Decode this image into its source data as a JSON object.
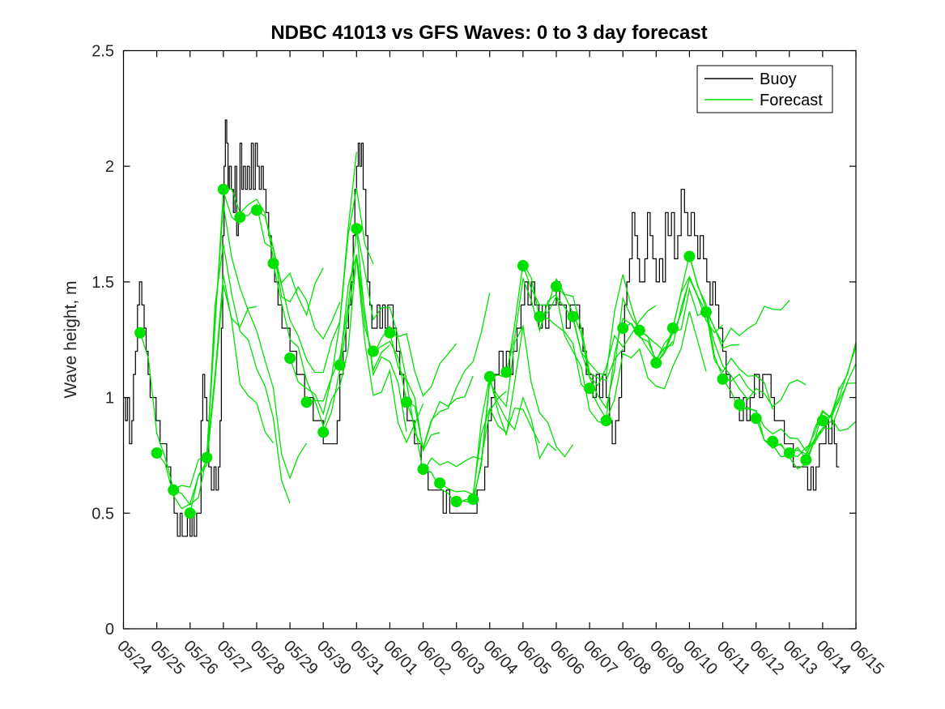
{
  "chart_data": {
    "type": "line",
    "title": "NDBC 41013 vs GFS Waves: 0 to 3 day forecast",
    "xlabel": "",
    "ylabel": "Wave height, m",
    "ylim": [
      0,
      2.5
    ],
    "x_range_days": [
      0,
      22
    ],
    "grid": false,
    "x_tick_labels": [
      "05/24",
      "05/25",
      "05/26",
      "05/27",
      "05/28",
      "05/29",
      "05/30",
      "05/31",
      "06/01",
      "06/02",
      "06/03",
      "06/04",
      "06/05",
      "06/06",
      "06/07",
      "06/08",
      "06/09",
      "06/10",
      "06/11",
      "06/12",
      "06/13",
      "06/14",
      "06/15"
    ],
    "y_tick_values": [
      0,
      0.5,
      1,
      1.5,
      2,
      2.5
    ],
    "y_tick_labels": [
      "0",
      "0.5",
      "1",
      "1.5",
      "2",
      "2.5"
    ],
    "legend": {
      "position": "top-right",
      "entries": [
        {
          "label": "Buoy",
          "color": "#000000"
        },
        {
          "label": "Forecast",
          "color": "#00e100"
        }
      ]
    },
    "series": {
      "buoy": {
        "name": "Buoy",
        "color": "#000000",
        "style": "step",
        "points": [
          [
            0.0,
            1.0
          ],
          [
            0.06,
            0.9
          ],
          [
            0.12,
            1.0
          ],
          [
            0.18,
            0.8
          ],
          [
            0.25,
            0.9
          ],
          [
            0.3,
            1.1
          ],
          [
            0.36,
            1.2
          ],
          [
            0.42,
            1.4
          ],
          [
            0.48,
            1.5
          ],
          [
            0.55,
            1.4
          ],
          [
            0.62,
            1.3
          ],
          [
            0.68,
            1.2
          ],
          [
            0.74,
            1.1
          ],
          [
            0.8,
            1.0
          ],
          [
            0.9,
            1.0
          ],
          [
            0.98,
            0.9
          ],
          [
            1.1,
            0.8
          ],
          [
            1.2,
            0.8
          ],
          [
            1.3,
            0.7
          ],
          [
            1.42,
            0.6
          ],
          [
            1.52,
            0.5
          ],
          [
            1.62,
            0.4
          ],
          [
            1.7,
            0.5
          ],
          [
            1.76,
            0.4
          ],
          [
            1.85,
            0.4
          ],
          [
            1.92,
            0.5
          ],
          [
            2.0,
            0.4
          ],
          [
            2.06,
            0.5
          ],
          [
            2.12,
            0.4
          ],
          [
            2.2,
            0.5
          ],
          [
            2.28,
            0.5
          ],
          [
            2.33,
            0.9
          ],
          [
            2.38,
            1.1
          ],
          [
            2.44,
            1.0
          ],
          [
            2.5,
            0.9
          ],
          [
            2.56,
            0.7
          ],
          [
            2.64,
            0.6
          ],
          [
            2.72,
            0.7
          ],
          [
            2.78,
            0.6
          ],
          [
            2.85,
            0.7
          ],
          [
            2.9,
            0.9
          ],
          [
            2.94,
            1.3
          ],
          [
            2.98,
            1.7
          ],
          [
            3.02,
            2.0
          ],
          [
            3.06,
            2.2
          ],
          [
            3.1,
            2.1
          ],
          [
            3.14,
            1.9
          ],
          [
            3.18,
            2.0
          ],
          [
            3.24,
            1.9
          ],
          [
            3.3,
            1.8
          ],
          [
            3.35,
            2.0
          ],
          [
            3.4,
            1.7
          ],
          [
            3.45,
            1.8
          ],
          [
            3.5,
            2.1
          ],
          [
            3.55,
            1.9
          ],
          [
            3.6,
            2.0
          ],
          [
            3.66,
            1.9
          ],
          [
            3.72,
            2.0
          ],
          [
            3.78,
            1.9
          ],
          [
            3.84,
            2.1
          ],
          [
            3.9,
            1.9
          ],
          [
            3.96,
            2.1
          ],
          [
            4.02,
            2.0
          ],
          [
            4.08,
            1.9
          ],
          [
            4.14,
            2.0
          ],
          [
            4.2,
            1.9
          ],
          [
            4.28,
            1.8
          ],
          [
            4.36,
            1.7
          ],
          [
            4.44,
            1.6
          ],
          [
            4.54,
            1.5
          ],
          [
            4.64,
            1.4
          ],
          [
            4.76,
            1.3
          ],
          [
            4.88,
            1.3
          ],
          [
            5.0,
            1.2
          ],
          [
            5.1,
            1.2
          ],
          [
            5.2,
            1.1
          ],
          [
            5.32,
            1.1
          ],
          [
            5.44,
            1.0
          ],
          [
            5.58,
            1.0
          ],
          [
            5.7,
            0.9
          ],
          [
            5.85,
            0.9
          ],
          [
            6.0,
            0.8
          ],
          [
            6.12,
            0.8
          ],
          [
            6.25,
            0.8
          ],
          [
            6.35,
            0.8
          ],
          [
            6.42,
            0.9
          ],
          [
            6.5,
            1.1
          ],
          [
            6.6,
            1.2
          ],
          [
            6.68,
            1.3
          ],
          [
            6.76,
            1.4
          ],
          [
            6.84,
            1.5
          ],
          [
            6.9,
            1.7
          ],
          [
            6.95,
            1.9
          ],
          [
            7.0,
            2.0
          ],
          [
            7.05,
            2.1
          ],
          [
            7.1,
            2.0
          ],
          [
            7.15,
            2.1
          ],
          [
            7.2,
            1.9
          ],
          [
            7.28,
            1.7
          ],
          [
            7.34,
            1.5
          ],
          [
            7.4,
            1.4
          ],
          [
            7.46,
            1.3
          ],
          [
            7.55,
            1.3
          ],
          [
            7.62,
            1.4
          ],
          [
            7.7,
            1.3
          ],
          [
            7.78,
            1.4
          ],
          [
            7.86,
            1.3
          ],
          [
            7.94,
            1.4
          ],
          [
            8.02,
            1.4
          ],
          [
            8.1,
            1.3
          ],
          [
            8.2,
            1.2
          ],
          [
            8.3,
            1.1
          ],
          [
            8.42,
            1.0
          ],
          [
            8.52,
            0.9
          ],
          [
            8.64,
            0.9
          ],
          [
            8.74,
            0.8
          ],
          [
            8.84,
            0.8
          ],
          [
            8.94,
            0.7
          ],
          [
            9.05,
            0.7
          ],
          [
            9.15,
            0.6
          ],
          [
            9.28,
            0.6
          ],
          [
            9.4,
            0.6
          ],
          [
            9.5,
            0.6
          ],
          [
            9.6,
            0.5
          ],
          [
            9.7,
            0.6
          ],
          [
            9.8,
            0.5
          ],
          [
            9.95,
            0.5
          ],
          [
            10.1,
            0.5
          ],
          [
            10.3,
            0.5
          ],
          [
            10.5,
            0.5
          ],
          [
            10.62,
            0.6
          ],
          [
            10.75,
            0.6
          ],
          [
            10.85,
            0.7
          ],
          [
            10.95,
            0.9
          ],
          [
            11.05,
            1.0
          ],
          [
            11.15,
            1.1
          ],
          [
            11.28,
            1.2
          ],
          [
            11.4,
            1.1
          ],
          [
            11.5,
            1.2
          ],
          [
            11.6,
            1.1
          ],
          [
            11.7,
            1.2
          ],
          [
            11.82,
            1.3
          ],
          [
            11.94,
            1.4
          ],
          [
            12.05,
            1.5
          ],
          [
            12.15,
            1.4
          ],
          [
            12.25,
            1.5
          ],
          [
            12.35,
            1.4
          ],
          [
            12.48,
            1.3
          ],
          [
            12.58,
            1.4
          ],
          [
            12.68,
            1.3
          ],
          [
            12.78,
            1.4
          ],
          [
            12.9,
            1.4
          ],
          [
            13.0,
            1.5
          ],
          [
            13.1,
            1.4
          ],
          [
            13.2,
            1.4
          ],
          [
            13.3,
            1.3
          ],
          [
            13.42,
            1.4
          ],
          [
            13.55,
            1.4
          ],
          [
            13.7,
            1.3
          ],
          [
            13.8,
            1.2
          ],
          [
            13.9,
            1.1
          ],
          [
            14.0,
            1.1
          ],
          [
            14.1,
            1.0
          ],
          [
            14.2,
            1.1
          ],
          [
            14.3,
            1.0
          ],
          [
            14.4,
            1.1
          ],
          [
            14.5,
            1.0
          ],
          [
            14.6,
            0.9
          ],
          [
            14.68,
            0.8
          ],
          [
            14.78,
            0.9
          ],
          [
            14.88,
            1.0
          ],
          [
            14.96,
            1.2
          ],
          [
            15.05,
            1.4
          ],
          [
            15.12,
            1.5
          ],
          [
            15.2,
            1.6
          ],
          [
            15.28,
            1.8
          ],
          [
            15.36,
            1.7
          ],
          [
            15.44,
            1.6
          ],
          [
            15.5,
            1.5
          ],
          [
            15.58,
            1.5
          ],
          [
            15.66,
            1.6
          ],
          [
            15.74,
            1.8
          ],
          [
            15.82,
            1.7
          ],
          [
            15.9,
            1.6
          ],
          [
            16.0,
            1.5
          ],
          [
            16.1,
            1.6
          ],
          [
            16.2,
            1.5
          ],
          [
            16.28,
            1.8
          ],
          [
            16.36,
            1.7
          ],
          [
            16.46,
            1.8
          ],
          [
            16.55,
            1.6
          ],
          [
            16.65,
            1.7
          ],
          [
            16.75,
            1.9
          ],
          [
            16.85,
            1.8
          ],
          [
            16.95,
            1.7
          ],
          [
            17.05,
            1.8
          ],
          [
            17.15,
            1.7
          ],
          [
            17.25,
            1.6
          ],
          [
            17.32,
            1.7
          ],
          [
            17.42,
            1.6
          ],
          [
            17.52,
            1.5
          ],
          [
            17.62,
            1.4
          ],
          [
            17.7,
            1.5
          ],
          [
            17.78,
            1.4
          ],
          [
            17.88,
            1.3
          ],
          [
            18.0,
            1.2
          ],
          [
            18.1,
            1.1
          ],
          [
            18.22,
            1.0
          ],
          [
            18.35,
            1.0
          ],
          [
            18.5,
            0.9
          ],
          [
            18.62,
            1.0
          ],
          [
            18.72,
            0.9
          ],
          [
            18.82,
            1.0
          ],
          [
            18.95,
            1.1
          ],
          [
            19.1,
            1.0
          ],
          [
            19.2,
            1.1
          ],
          [
            19.35,
            1.1
          ],
          [
            19.45,
            1.0
          ],
          [
            19.55,
            0.9
          ],
          [
            19.7,
            0.9
          ],
          [
            19.85,
            0.8
          ],
          [
            20.0,
            0.8
          ],
          [
            20.12,
            0.7
          ],
          [
            20.25,
            0.7
          ],
          [
            20.35,
            0.7
          ],
          [
            20.45,
            0.7
          ],
          [
            20.55,
            0.6
          ],
          [
            20.65,
            0.7
          ],
          [
            20.72,
            0.6
          ],
          [
            20.8,
            0.7
          ],
          [
            20.9,
            0.8
          ],
          [
            21.0,
            0.8
          ],
          [
            21.1,
            0.9
          ],
          [
            21.18,
            0.8
          ],
          [
            21.28,
            0.9
          ],
          [
            21.35,
            0.8
          ],
          [
            21.42,
            0.7
          ],
          [
            21.5,
            0.7
          ]
        ]
      },
      "forecast_markers": {
        "name": "Forecast start points (12-hourly, green dots)",
        "color": "#00e100",
        "points": [
          [
            0.5,
            1.28
          ],
          [
            1.0,
            0.76
          ],
          [
            1.5,
            0.6
          ],
          [
            2.0,
            0.5
          ],
          [
            2.5,
            0.74
          ],
          [
            3.0,
            1.9
          ],
          [
            3.5,
            1.78
          ],
          [
            4.0,
            1.81
          ],
          [
            4.5,
            1.58
          ],
          [
            5.0,
            1.17
          ],
          [
            5.5,
            0.98
          ],
          [
            6.0,
            0.85
          ],
          [
            6.5,
            1.14
          ],
          [
            7.0,
            1.73
          ],
          [
            7.5,
            1.2
          ],
          [
            8.0,
            1.28
          ],
          [
            8.5,
            0.98
          ],
          [
            9.0,
            0.69
          ],
          [
            9.5,
            0.63
          ],
          [
            10.0,
            0.55
          ],
          [
            10.5,
            0.56
          ],
          [
            11.0,
            1.09
          ],
          [
            11.5,
            1.11
          ],
          [
            12.0,
            1.57
          ],
          [
            12.5,
            1.35
          ],
          [
            13.0,
            1.48
          ],
          [
            13.5,
            1.35
          ],
          [
            14.0,
            1.04
          ],
          [
            14.5,
            0.9
          ],
          [
            15.0,
            1.3
          ],
          [
            15.5,
            1.29
          ],
          [
            16.0,
            1.15
          ],
          [
            16.5,
            1.3
          ],
          [
            17.0,
            1.61
          ],
          [
            17.5,
            1.37
          ],
          [
            18.0,
            1.08
          ],
          [
            18.5,
            0.97
          ],
          [
            19.0,
            0.91
          ],
          [
            19.5,
            0.81
          ],
          [
            20.0,
            0.76
          ],
          [
            20.5,
            0.73
          ],
          [
            21.0,
            0.9
          ]
        ]
      },
      "forecast": {
        "name": "Forecast",
        "color": "#00e100",
        "style": "ensemble of 0-3 day trajectories, one initialized at each green dot",
        "lead_days": 3,
        "init_interval_days": 0.5,
        "end_extension": [
          [
            21.5,
            1.05
          ],
          [
            22.0,
            1.35
          ]
        ]
      }
    }
  }
}
